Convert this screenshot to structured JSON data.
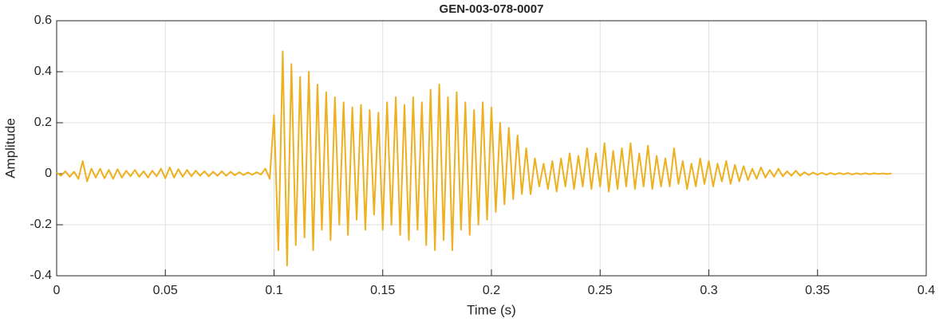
{
  "chart_data": {
    "type": "line",
    "title": "GEN-003-078-0007",
    "xlabel": "Time (s)",
    "ylabel": "Amplitude",
    "color": "#EDB120",
    "grid": true,
    "xlim": [
      0,
      0.4
    ],
    "xticks": [
      0,
      0.05,
      0.1,
      0.15,
      0.2,
      0.25,
      0.3,
      0.35,
      0.4
    ],
    "ylim": [
      -0.4,
      0.6
    ],
    "yticks": [
      -0.4,
      -0.2,
      0,
      0.2,
      0.4,
      0.6
    ],
    "x": [
      0,
      0.002,
      0.004,
      0.006,
      0.008,
      0.01,
      0.012,
      0.014,
      0.016,
      0.018,
      0.02,
      0.022,
      0.024,
      0.026,
      0.028,
      0.03,
      0.032,
      0.034,
      0.036,
      0.038,
      0.04,
      0.042,
      0.044,
      0.046,
      0.048,
      0.05,
      0.052,
      0.054,
      0.056,
      0.058,
      0.06,
      0.062,
      0.064,
      0.066,
      0.068,
      0.07,
      0.072,
      0.074,
      0.076,
      0.078,
      0.08,
      0.082,
      0.084,
      0.086,
      0.088,
      0.09,
      0.092,
      0.094,
      0.096,
      0.098,
      0.1,
      0.102,
      0.104,
      0.106,
      0.108,
      0.11,
      0.112,
      0.114,
      0.116,
      0.118,
      0.12,
      0.122,
      0.124,
      0.126,
      0.128,
      0.13,
      0.132,
      0.134,
      0.136,
      0.138,
      0.14,
      0.142,
      0.144,
      0.146,
      0.148,
      0.15,
      0.152,
      0.154,
      0.156,
      0.158,
      0.16,
      0.162,
      0.164,
      0.166,
      0.168,
      0.17,
      0.172,
      0.174,
      0.176,
      0.178,
      0.18,
      0.182,
      0.184,
      0.186,
      0.188,
      0.19,
      0.192,
      0.194,
      0.196,
      0.198,
      0.2,
      0.202,
      0.204,
      0.206,
      0.208,
      0.21,
      0.212,
      0.214,
      0.216,
      0.218,
      0.22,
      0.222,
      0.224,
      0.226,
      0.228,
      0.23,
      0.232,
      0.234,
      0.236,
      0.238,
      0.24,
      0.242,
      0.244,
      0.246,
      0.248,
      0.25,
      0.252,
      0.254,
      0.256,
      0.258,
      0.26,
      0.262,
      0.264,
      0.266,
      0.268,
      0.27,
      0.272,
      0.274,
      0.276,
      0.278,
      0.28,
      0.282,
      0.284,
      0.286,
      0.288,
      0.29,
      0.292,
      0.294,
      0.296,
      0.298,
      0.3,
      0.302,
      0.304,
      0.306,
      0.308,
      0.31,
      0.312,
      0.314,
      0.316,
      0.318,
      0.32,
      0.322,
      0.324,
      0.326,
      0.328,
      0.33,
      0.332,
      0.334,
      0.336,
      0.338,
      0.34,
      0.342,
      0.344,
      0.346,
      0.348,
      0.35,
      0.352,
      0.354,
      0.356,
      0.358,
      0.36,
      0.362,
      0.364,
      0.366,
      0.368,
      0.37,
      0.372,
      0.374,
      0.376,
      0.378,
      0.38,
      0.382,
      0.384
    ],
    "values": [
      0.005,
      -0.008,
      0.01,
      -0.012,
      0.008,
      -0.02,
      0.05,
      -0.03,
      0.02,
      -0.015,
      0.02,
      -0.018,
      0.015,
      -0.02,
      0.018,
      -0.015,
      0.012,
      -0.01,
      0.015,
      -0.012,
      0.01,
      -0.015,
      0.012,
      -0.01,
      0.02,
      -0.018,
      0.025,
      -0.015,
      0.018,
      -0.012,
      0.015,
      -0.01,
      0.012,
      -0.008,
      0.01,
      -0.01,
      0.008,
      -0.008,
      0.01,
      -0.008,
      0.008,
      -0.006,
      0.006,
      -0.005,
      0.005,
      -0.004,
      0.006,
      -0.003,
      0.02,
      -0.02,
      0.23,
      -0.3,
      0.48,
      -0.36,
      0.43,
      -0.28,
      0.38,
      -0.25,
      0.4,
      -0.3,
      0.35,
      -0.22,
      0.32,
      -0.26,
      0.3,
      -0.2,
      0.28,
      -0.24,
      0.26,
      -0.18,
      0.27,
      -0.22,
      0.25,
      -0.16,
      0.24,
      -0.22,
      0.28,
      -0.2,
      0.3,
      -0.24,
      0.27,
      -0.26,
      0.3,
      -0.22,
      0.28,
      -0.28,
      0.33,
      -0.3,
      0.35,
      -0.26,
      0.3,
      -0.3,
      0.32,
      -0.22,
      0.28,
      -0.24,
      0.25,
      -0.2,
      0.28,
      -0.18,
      0.26,
      -0.15,
      0.2,
      -0.12,
      0.18,
      -0.1,
      0.15,
      -0.08,
      0.1,
      -0.08,
      0.06,
      -0.05,
      0.04,
      -0.06,
      0.05,
      -0.07,
      0.06,
      -0.05,
      0.08,
      -0.06,
      0.07,
      -0.05,
      0.1,
      -0.06,
      0.08,
      -0.05,
      0.12,
      -0.07,
      0.09,
      -0.06,
      0.1,
      -0.05,
      0.12,
      -0.06,
      0.08,
      -0.05,
      0.11,
      -0.06,
      0.07,
      -0.05,
      0.06,
      -0.05,
      0.1,
      -0.04,
      0.05,
      -0.06,
      0.04,
      -0.05,
      0.06,
      -0.04,
      0.05,
      -0.05,
      0.04,
      -0.03,
      0.05,
      -0.04,
      0.035,
      -0.03,
      0.03,
      -0.025,
      0.02,
      -0.02,
      0.025,
      -0.015,
      0.015,
      -0.012,
      0.02,
      -0.01,
      0.01,
      -0.008,
      0.012,
      -0.008,
      0.006,
      -0.005,
      0.005,
      -0.004,
      0.004,
      -0.004,
      0.003,
      -0.003,
      0.003,
      -0.002,
      0.003,
      -0.003,
      0.002,
      -0.002,
      0.002,
      -0.002,
      0.002,
      -0.001,
      0.001,
      -0.001,
      0.001
    ]
  }
}
